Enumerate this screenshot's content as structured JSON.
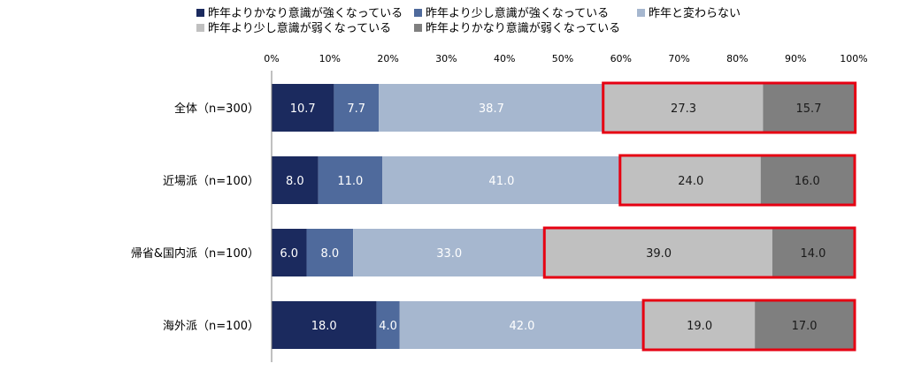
{
  "chart_data": {
    "type": "bar",
    "orientation": "horizontal",
    "stacked": true,
    "title": "",
    "xlabel": "",
    "ylabel": "",
    "xlim": [
      0,
      100
    ],
    "x_ticks": [
      "0%",
      "10%",
      "20%",
      "30%",
      "40%",
      "50%",
      "60%",
      "70%",
      "80%",
      "90%",
      "100%"
    ],
    "grid": false,
    "legend_position": "top",
    "categories": [
      "全体（n=300）",
      "近場派（n=100）",
      "帰省&国内派（n=100）",
      "海外派（n=100）"
    ],
    "series": [
      {
        "name": "昨年よりかなり意識が強くなっている",
        "color": "#1b2a5e",
        "label_color": "#ffffff",
        "values": [
          10.7,
          8.0,
          6.0,
          18.0
        ]
      },
      {
        "name": "昨年より少し意識が強くなっている",
        "color": "#4f6a9c",
        "label_color": "#ffffff",
        "values": [
          7.7,
          11.0,
          8.0,
          4.0
        ]
      },
      {
        "name": "昨年と変わらない",
        "color": "#a6b7cf",
        "label_color": "#ffffff",
        "values": [
          38.7,
          41.0,
          33.0,
          42.0
        ]
      },
      {
        "name": "昨年より少し意識が弱くなっている",
        "color": "#c0c0c0",
        "label_color": "#1a1a1a",
        "values": [
          27.3,
          24.0,
          39.0,
          19.0
        ]
      },
      {
        "name": "昨年よりかなり意識が弱くなっている",
        "color": "#7f7f7f",
        "label_color": "#1a1a1a",
        "values": [
          15.7,
          16.0,
          14.0,
          17.0
        ]
      }
    ],
    "highlight": {
      "series_indices": [
        3,
        4
      ],
      "color": "#e60012"
    }
  }
}
